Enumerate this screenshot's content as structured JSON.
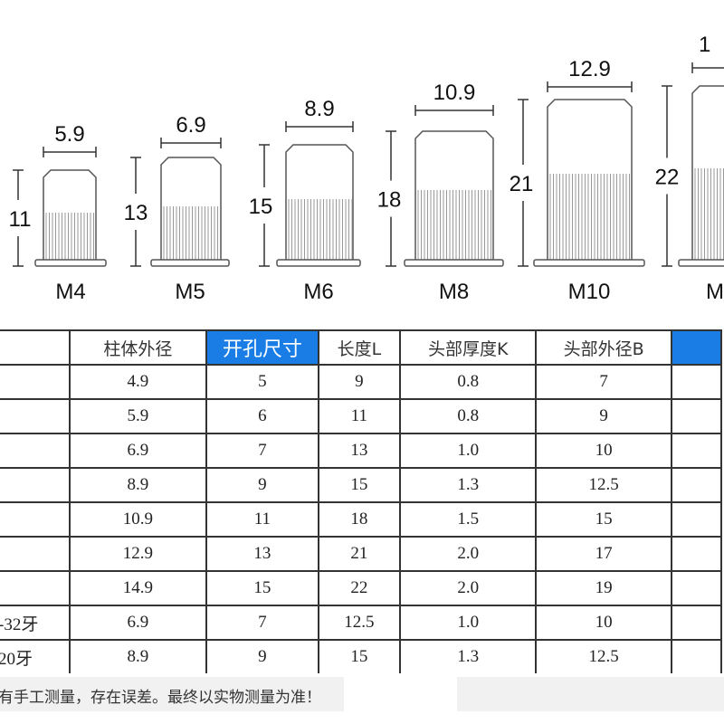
{
  "diagram": {
    "bolts": [
      {
        "model": "M4",
        "diameter": "5.9",
        "length": "11"
      },
      {
        "model": "M5",
        "diameter": "6.9",
        "length": "13"
      },
      {
        "model": "M6",
        "diameter": "8.9",
        "length": "15"
      },
      {
        "model": "M8",
        "diameter": "10.9",
        "length": "18"
      },
      {
        "model": "M10",
        "diameter": "12.9",
        "length": "21"
      },
      {
        "model": "M",
        "diameter": "1",
        "length": "22"
      }
    ],
    "line_color": "#555555"
  },
  "table": {
    "headers": [
      "",
      "柱体外径",
      "开孔尺寸",
      "长度L",
      "头部厚度K",
      "头部外径B",
      ""
    ],
    "highlight_color": "#1a7de6",
    "rows": [
      [
        "",
        "4.9",
        "5",
        "9",
        "0.8",
        "7",
        ""
      ],
      [
        "",
        "5.9",
        "6",
        "11",
        "0.8",
        "9",
        ""
      ],
      [
        "",
        "6.9",
        "7",
        "13",
        "1.0",
        "10",
        ""
      ],
      [
        "",
        "8.9",
        "9",
        "15",
        "1.3",
        "12.5",
        ""
      ],
      [
        "",
        "10.9",
        "11",
        "18",
        "1.5",
        "15",
        ""
      ],
      [
        "",
        "12.9",
        "13",
        "21",
        "2.0",
        "17",
        ""
      ],
      [
        "",
        "14.9",
        "15",
        "22",
        "2.0",
        "19",
        ""
      ],
      [
        "-32牙",
        "6.9",
        "7",
        "12.5",
        "1.0",
        "10",
        ""
      ],
      [
        "20牙",
        "8.9",
        "9",
        "15",
        "1.3",
        "12.5",
        ""
      ]
    ]
  },
  "footer": {
    "note": "有手工测量，存在误差。最终以实物测量为准！"
  }
}
